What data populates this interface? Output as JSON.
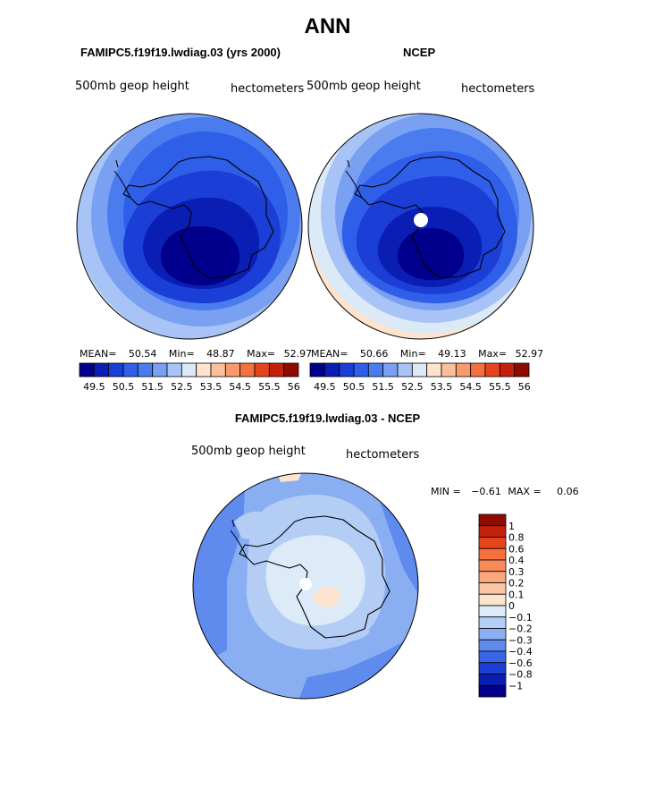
{
  "page": {
    "title": "ANN"
  },
  "chart_data": [
    {
      "type": "heatmap",
      "projection": "south-polar-stereographic",
      "title": "FAMIPC5.f19f19.lwdiag.03 (yrs 2000)",
      "variable_label": "500mb geop height",
      "units_label": "hectometers",
      "stats": {
        "mean_label": "MEAN=",
        "mean": "50.54",
        "min_label": "Min=",
        "min": "48.87",
        "max_label": "Max=",
        "max": "52.97"
      },
      "levels": [
        49.5,
        50.5,
        51.5,
        52.5,
        53.5,
        54.5,
        55.5,
        56.5
      ],
      "tick_labels": [
        "49.5",
        "50.5",
        "51.5",
        "52.5",
        "53.5",
        "54.5",
        "55.5",
        "56.5"
      ],
      "colors": [
        "#00008c",
        "#0a1eb4",
        "#1a3ed6",
        "#2f5ee8",
        "#4a7cf0",
        "#7aa0f2",
        "#a8c4f6",
        "#dceaf8",
        "#ffe3cc",
        "#fbc09a",
        "#f89a6c",
        "#f5703f",
        "#e6451b",
        "#c3210c",
        "#8f0a00"
      ],
      "legend": "bottom"
    },
    {
      "type": "heatmap",
      "projection": "south-polar-stereographic",
      "title": "NCEP",
      "variable_label": "500mb geop height",
      "units_label": "hectometers",
      "stats": {
        "mean_label": "MEAN=",
        "mean": "50.66",
        "min_label": "Min=",
        "min": "49.13",
        "max_label": "Max=",
        "max": "52.97"
      },
      "levels": [
        49.5,
        50.5,
        51.5,
        52.5,
        53.5,
        54.5,
        55.5,
        56.5
      ],
      "tick_labels": [
        "49.5",
        "50.5",
        "51.5",
        "52.5",
        "53.5",
        "54.5",
        "55.5",
        "56.5"
      ],
      "colors": [
        "#00008c",
        "#0a1eb4",
        "#1a3ed6",
        "#2f5ee8",
        "#4a7cf0",
        "#7aa0f2",
        "#a8c4f6",
        "#dceaf8",
        "#ffe3cc",
        "#fbc09a",
        "#f89a6c",
        "#f5703f",
        "#e6451b",
        "#c3210c",
        "#8f0a00"
      ],
      "legend": "bottom"
    },
    {
      "type": "heatmap",
      "projection": "south-polar-stereographic",
      "title": "FAMIPC5.f19f19.lwdiag.03 - NCEP",
      "variable_label": "500mb geop height",
      "units_label": "hectometers",
      "stats": {
        "min_label": "MIN =",
        "min": "−0.61",
        "max_label": "MAX =",
        "max": "0.06"
      },
      "levels": [
        -1,
        -0.8,
        -0.6,
        -0.4,
        -0.3,
        -0.2,
        -0.1,
        0,
        0.1,
        0.2,
        0.3,
        0.4,
        0.6,
        0.8,
        1
      ],
      "tick_labels": [
        "1",
        "0.8",
        "0.6",
        "0.4",
        "0.3",
        "0.2",
        "0.1",
        "0",
        "−0.1",
        "−0.2",
        "−0.3",
        "−0.4",
        "−0.6",
        "−0.8",
        "−1"
      ],
      "colors_top_to_bottom": [
        "#8f0a00",
        "#c3210c",
        "#e6451b",
        "#f5703f",
        "#f88a5a",
        "#f9a87e",
        "#fbc7a4",
        "#fde4cf",
        "#ddeaf8",
        "#b4cdf5",
        "#8aaef2",
        "#5f8bee",
        "#3766e6",
        "#1a3ed6",
        "#0a1eb4",
        "#00008c"
      ],
      "legend": "right"
    }
  ]
}
